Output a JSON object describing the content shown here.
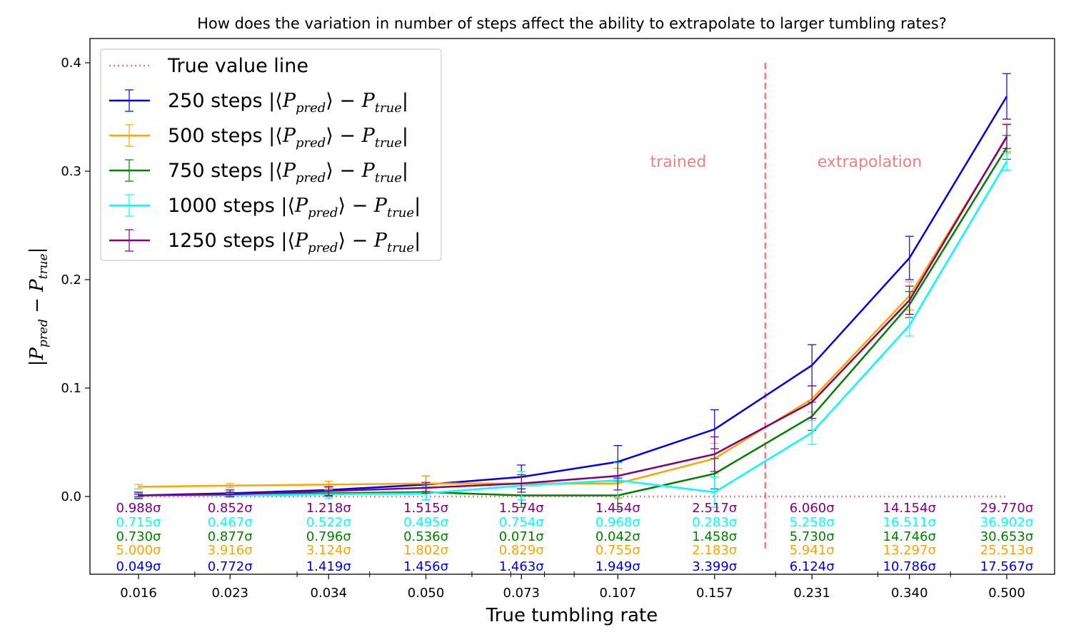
{
  "chart_data": {
    "type": "line",
    "title": "How does the variation in number of steps affect the ability to extrapolate to larger tumbling rates?",
    "xlabel": "True tumbling rate",
    "ylabel": "|P_pred − P_true|",
    "x_scale": "log",
    "x_ticks": [
      "0.016",
      "0.023",
      "0.034",
      "0.050",
      "0.073",
      "0.107",
      "0.157",
      "0.231",
      "0.340",
      "0.500"
    ],
    "x": [
      0.016,
      0.023,
      0.034,
      0.05,
      0.073,
      0.107,
      0.157,
      0.231,
      0.34,
      0.5
    ],
    "ylim": [
      -0.072,
      0.42
    ],
    "y_ticks": [
      0.0,
      0.1,
      0.2,
      0.3,
      0.4
    ],
    "y_tick_labels": [
      "0.0",
      "0.1",
      "0.2",
      "0.3",
      "0.4"
    ],
    "grid": false,
    "legend_position": "top-left",
    "boundary_x": 0.192,
    "region_labels": {
      "trained": "trained",
      "extrapolation": "extrapolation"
    },
    "region_label_color": "#f08080",
    "true_value_line": {
      "name": "True value line",
      "y": 0.0,
      "color": "#f08080"
    },
    "series": [
      {
        "name": "250 steps |⟨P_pred⟩ − P_true|",
        "legend_prefix": "250 steps",
        "color": "#0000ee",
        "values": [
          0.001,
          0.003,
          0.006,
          0.011,
          0.018,
          0.032,
          0.062,
          0.121,
          0.22,
          0.369
        ],
        "errors": [
          0.003,
          0.003,
          0.003,
          0.008,
          0.011,
          0.015,
          0.018,
          0.019,
          0.02,
          0.021
        ],
        "sigmas": [
          "0.049σ",
          "0.772σ",
          "1.419σ",
          "1.456σ",
          "1.463σ",
          "1.949σ",
          "3.399σ",
          "6.124σ",
          "10.786σ",
          "17.567σ"
        ]
      },
      {
        "name": "500 steps |⟨P_pred⟩ − P_true|",
        "legend_prefix": "500 steps",
        "color": "#ffa500",
        "values": [
          0.009,
          0.01,
          0.011,
          0.012,
          0.012,
          0.012,
          0.035,
          0.09,
          0.185,
          0.331
        ],
        "errors": [
          0.002,
          0.002,
          0.003,
          0.007,
          0.011,
          0.014,
          0.014,
          0.012,
          0.013,
          0.013
        ],
        "sigmas": [
          "5.000σ",
          "3.916σ",
          "3.124σ",
          "1.802σ",
          "0.829σ",
          "0.755σ",
          "2.183σ",
          "5.941σ",
          "13.297σ",
          "25.513σ"
        ]
      },
      {
        "name": "750 steps |⟨P_pred⟩ − P_true|",
        "legend_prefix": "750 steps",
        "color": "#008000",
        "values": [
          0.001,
          0.002,
          0.003,
          0.004,
          0.001,
          0.001,
          0.021,
          0.074,
          0.177,
          0.322
        ],
        "errors": [
          0.002,
          0.002,
          0.003,
          0.007,
          0.011,
          0.013,
          0.014,
          0.013,
          0.012,
          0.011
        ],
        "sigmas": [
          "0.730σ",
          "0.877σ",
          "0.796σ",
          "0.536σ",
          "0.071σ",
          "0.042σ",
          "1.458σ",
          "5.730σ",
          "14.746σ",
          "30.653σ"
        ]
      },
      {
        "name": "1000 steps |⟨P_pred⟩ − P_true|",
        "legend_prefix": "1000 steps",
        "color": "#00ffff",
        "values": [
          0.001,
          0.001,
          0.002,
          0.003,
          0.01,
          0.015,
          0.004,
          0.059,
          0.158,
          0.309
        ],
        "errors": [
          0.002,
          0.002,
          0.004,
          0.006,
          0.013,
          0.016,
          0.014,
          0.011,
          0.01,
          0.008
        ],
        "sigmas": [
          "0.715σ",
          "0.467σ",
          "0.522σ",
          "0.495σ",
          "0.754σ",
          "0.968σ",
          "0.283σ",
          "5.258σ",
          "16.511σ",
          "36.902σ"
        ]
      },
      {
        "name": "1250 steps |⟨P_pred⟩ − P_true|",
        "legend_prefix": "1250 steps",
        "color": "#800080",
        "values": [
          0.001,
          0.002,
          0.005,
          0.008,
          0.012,
          0.019,
          0.039,
          0.087,
          0.181,
          0.332
        ],
        "errors": [
          0.001,
          0.002,
          0.004,
          0.005,
          0.008,
          0.013,
          0.016,
          0.015,
          0.013,
          0.011
        ],
        "sigmas": [
          "0.988σ",
          "0.852σ",
          "1.218σ",
          "1.515σ",
          "1.574σ",
          "1.454σ",
          "2.517σ",
          "6.060σ",
          "14.154σ",
          "29.770σ"
        ]
      }
    ]
  }
}
